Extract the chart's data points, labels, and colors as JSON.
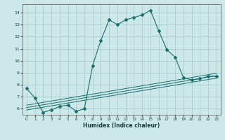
{
  "xlabel": "Humidex (Indice chaleur)",
  "bg_color": "#cce8e8",
  "grid_color": "#aacccc",
  "line_color": "#1a6e6e",
  "xlim": [
    -0.5,
    23.5
  ],
  "ylim": [
    5.5,
    14.7
  ],
  "xticks": [
    0,
    1,
    2,
    3,
    4,
    5,
    6,
    7,
    8,
    9,
    10,
    11,
    12,
    13,
    14,
    15,
    16,
    17,
    18,
    19,
    20,
    21,
    22,
    23
  ],
  "yticks": [
    6,
    7,
    8,
    9,
    10,
    11,
    12,
    13,
    14
  ],
  "main_line_x": [
    0,
    1,
    2,
    3,
    4,
    5,
    6,
    7,
    8,
    9,
    10,
    11,
    12,
    13,
    14,
    15,
    16,
    17,
    18,
    19,
    20,
    21,
    22,
    23
  ],
  "main_line_y": [
    7.7,
    6.9,
    5.7,
    5.9,
    6.2,
    6.3,
    5.8,
    6.0,
    9.6,
    11.7,
    13.4,
    13.0,
    13.4,
    13.6,
    13.8,
    14.2,
    12.5,
    10.9,
    10.3,
    8.6,
    8.4,
    8.5,
    8.7,
    8.7
  ],
  "reg_lines": [
    {
      "x": [
        0,
        23
      ],
      "y": [
        5.9,
        8.55
      ]
    },
    {
      "x": [
        0,
        23
      ],
      "y": [
        6.1,
        8.75
      ]
    },
    {
      "x": [
        0,
        23
      ],
      "y": [
        6.3,
        8.95
      ]
    }
  ]
}
